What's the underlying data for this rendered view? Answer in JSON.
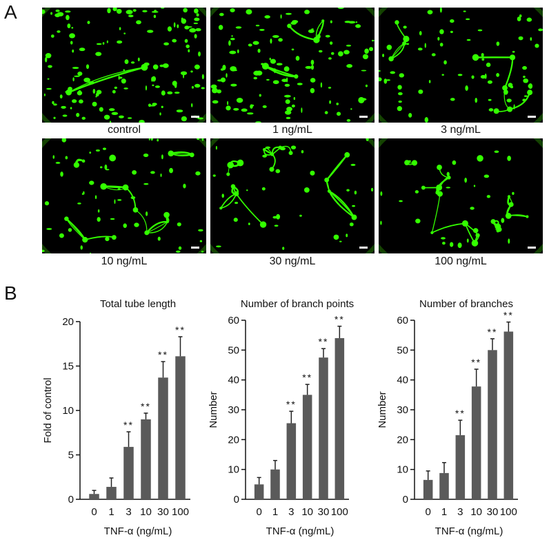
{
  "panel_labels": {
    "a": "A",
    "b": "B"
  },
  "colors": {
    "stain": "#33ff00",
    "background": "#000000",
    "bar": "#5a5a5a"
  },
  "micrographs": [
    {
      "caption": "control",
      "network": 0
    },
    {
      "caption": "1 ng/mL",
      "network": 1
    },
    {
      "caption": "3 ng/mL",
      "network": 2
    },
    {
      "caption": "10 ng/mL",
      "network": 3
    },
    {
      "caption": "30 ng/mL",
      "network": 4
    },
    {
      "caption": "100 ng/mL",
      "network": 5
    }
  ],
  "chart_data": [
    {
      "type": "bar",
      "title": "Total tube length",
      "xlabel": "TNF-α (ng/mL)",
      "ylabel": "Fold  of control",
      "categories": [
        "0",
        "1",
        "3",
        "10",
        "30",
        "100"
      ],
      "values": [
        0.6,
        1.4,
        5.9,
        9.0,
        13.7,
        16.1
      ],
      "errors": [
        0.4,
        1.0,
        1.7,
        0.7,
        1.8,
        2.2
      ],
      "significance": [
        "",
        "",
        "**",
        "**",
        "**",
        "**"
      ],
      "ylim": [
        0,
        20
      ],
      "yticks": [
        0,
        5,
        10,
        15,
        20
      ]
    },
    {
      "type": "bar",
      "title": "Number of branch points",
      "xlabel": "TNF-α (ng/mL)",
      "ylabel": "Number",
      "categories": [
        "0",
        "1",
        "3",
        "10",
        "30",
        "100"
      ],
      "values": [
        5,
        10,
        25.5,
        35,
        47.5,
        54
      ],
      "errors": [
        2.3,
        3,
        4,
        3.5,
        3,
        4
      ],
      "significance": [
        "",
        "",
        "**",
        "**",
        "**",
        "**"
      ],
      "ylim": [
        0,
        60
      ],
      "yticks": [
        0,
        10,
        20,
        30,
        40,
        50,
        60
      ]
    },
    {
      "type": "bar",
      "title": "Number of branches",
      "xlabel": "TNF-α (ng/mL)",
      "ylabel": "Number",
      "categories": [
        "0",
        "1",
        "3",
        "10",
        "30",
        "100"
      ],
      "values": [
        6.5,
        8.8,
        21.5,
        37.8,
        50,
        56.2
      ],
      "errors": [
        3,
        3.5,
        5,
        5.8,
        3.8,
        3.2
      ],
      "significance": [
        "",
        "",
        "**",
        "**",
        "**",
        "**"
      ],
      "ylim": [
        0,
        60
      ],
      "yticks": [
        0,
        10,
        20,
        30,
        40,
        50,
        60
      ]
    }
  ]
}
